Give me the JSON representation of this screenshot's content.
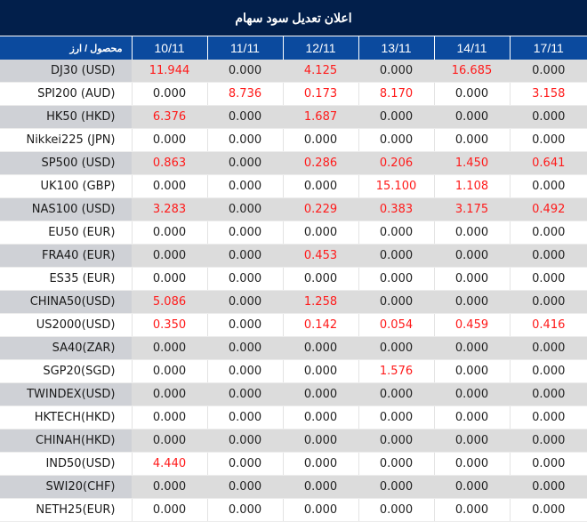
{
  "title": "اعلان تعدیل سود سهام",
  "header": {
    "product_label": "محصول / ارز",
    "dates": [
      "10/11",
      "11/11",
      "12/11",
      "13/11",
      "14/11",
      "17/11"
    ]
  },
  "colors": {
    "title_bg": "#021f4b",
    "header_bg": "#0b4a9e",
    "highlight": "#ff1a1a",
    "alt_row": "#dcdcdc"
  },
  "rows": [
    {
      "product": "DJ30 (USD)",
      "values": [
        "11.944",
        "0.000",
        "4.125",
        "0.000",
        "16.685",
        "0.000"
      ]
    },
    {
      "product": "SPI200 (AUD)",
      "values": [
        "0.000",
        "8.736",
        "0.173",
        "8.170",
        "0.000",
        "3.158"
      ]
    },
    {
      "product": "HK50 (HKD)",
      "values": [
        "6.376",
        "0.000",
        "1.687",
        "0.000",
        "0.000",
        "0.000"
      ]
    },
    {
      "product": "Nikkei225 (JPN)",
      "values": [
        "0.000",
        "0.000",
        "0.000",
        "0.000",
        "0.000",
        "0.000"
      ]
    },
    {
      "product": "SP500 (USD)",
      "values": [
        "0.863",
        "0.000",
        "0.286",
        "0.206",
        "1.450",
        "0.641"
      ]
    },
    {
      "product": "UK100 (GBP)",
      "values": [
        "0.000",
        "0.000",
        "0.000",
        "15.100",
        "1.108",
        "0.000"
      ]
    },
    {
      "product": "NAS100 (USD)",
      "values": [
        "3.283",
        "0.000",
        "0.229",
        "0.383",
        "3.175",
        "0.492"
      ]
    },
    {
      "product": "EU50 (EUR)",
      "values": [
        "0.000",
        "0.000",
        "0.000",
        "0.000",
        "0.000",
        "0.000"
      ]
    },
    {
      "product": "FRA40 (EUR)",
      "values": [
        "0.000",
        "0.000",
        "0.453",
        "0.000",
        "0.000",
        "0.000"
      ]
    },
    {
      "product": "ES35 (EUR)",
      "values": [
        "0.000",
        "0.000",
        "0.000",
        "0.000",
        "0.000",
        "0.000"
      ]
    },
    {
      "product": "CHINA50(USD)",
      "values": [
        "5.086",
        "0.000",
        "1.258",
        "0.000",
        "0.000",
        "0.000"
      ]
    },
    {
      "product": "US2000(USD)",
      "values": [
        "0.350",
        "0.000",
        "0.142",
        "0.054",
        "0.459",
        "0.416"
      ]
    },
    {
      "product": "SA40(ZAR)",
      "values": [
        "0.000",
        "0.000",
        "0.000",
        "0.000",
        "0.000",
        "0.000"
      ]
    },
    {
      "product": "SGP20(SGD)",
      "values": [
        "0.000",
        "0.000",
        "0.000",
        "1.576",
        "0.000",
        "0.000"
      ]
    },
    {
      "product": "TWINDEX(USD)",
      "values": [
        "0.000",
        "0.000",
        "0.000",
        "0.000",
        "0.000",
        "0.000"
      ]
    },
    {
      "product": "HKTECH(HKD)",
      "values": [
        "0.000",
        "0.000",
        "0.000",
        "0.000",
        "0.000",
        "0.000"
      ]
    },
    {
      "product": "CHINAH(HKD)",
      "values": [
        "0.000",
        "0.000",
        "0.000",
        "0.000",
        "0.000",
        "0.000"
      ]
    },
    {
      "product": "IND50(USD)",
      "values": [
        "4.440",
        "0.000",
        "0.000",
        "0.000",
        "0.000",
        "0.000"
      ]
    },
    {
      "product": "SWI20(CHF)",
      "values": [
        "0.000",
        "0.000",
        "0.000",
        "0.000",
        "0.000",
        "0.000"
      ]
    },
    {
      "product": "NETH25(EUR)",
      "values": [
        "0.000",
        "0.000",
        "0.000",
        "0.000",
        "0.000",
        "0.000"
      ]
    }
  ]
}
